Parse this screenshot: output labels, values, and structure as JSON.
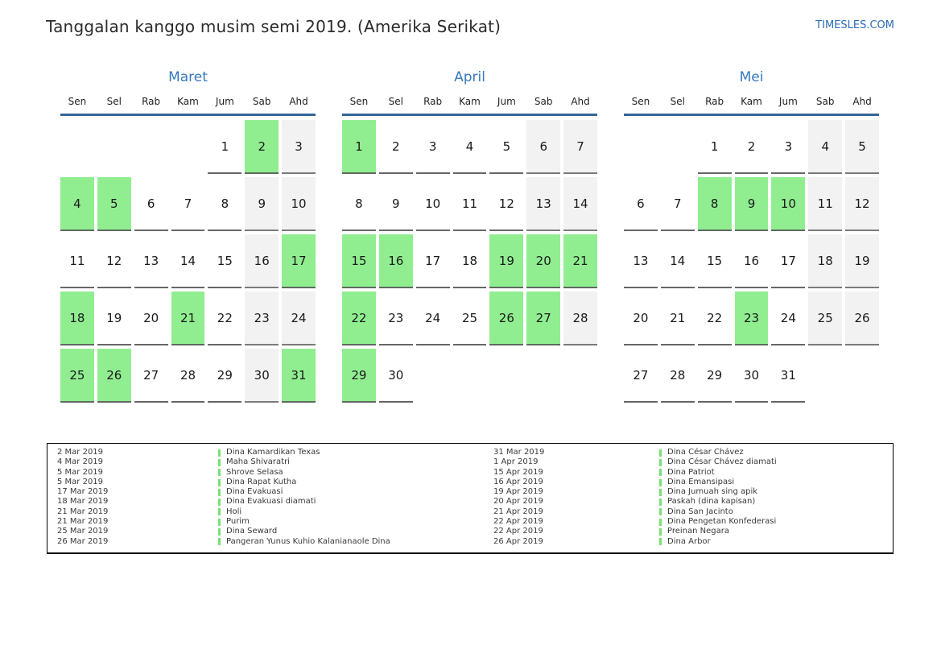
{
  "header": {
    "title": "Tanggalan kanggo musim semi 2019. (Amerika Serikat)",
    "site": "TIMESLES.COM"
  },
  "weekdays": [
    "Sen",
    "Sel",
    "Rab",
    "Kam",
    "Jum",
    "Sab",
    "Ahd"
  ],
  "months": [
    {
      "name": "Maret",
      "weeks": [
        [
          null,
          null,
          null,
          null,
          1,
          2,
          3
        ],
        [
          4,
          5,
          6,
          7,
          8,
          9,
          10
        ],
        [
          11,
          12,
          13,
          14,
          15,
          16,
          17
        ],
        [
          18,
          19,
          20,
          21,
          22,
          23,
          24
        ],
        [
          25,
          26,
          27,
          28,
          29,
          30,
          31
        ]
      ],
      "holiday_days": [
        2,
        4,
        5,
        17,
        18,
        21,
        25,
        26,
        31
      ]
    },
    {
      "name": "April",
      "weeks": [
        [
          1,
          2,
          3,
          4,
          5,
          6,
          7
        ],
        [
          8,
          9,
          10,
          11,
          12,
          13,
          14
        ],
        [
          15,
          16,
          17,
          18,
          19,
          20,
          21
        ],
        [
          22,
          23,
          24,
          25,
          26,
          27,
          28
        ],
        [
          29,
          30,
          null,
          null,
          null,
          null,
          null
        ]
      ],
      "holiday_days": [
        1,
        15,
        16,
        19,
        20,
        21,
        22,
        26,
        27,
        29
      ]
    },
    {
      "name": "Mei",
      "weeks": [
        [
          null,
          null,
          1,
          2,
          3,
          4,
          5
        ],
        [
          6,
          7,
          8,
          9,
          10,
          11,
          12
        ],
        [
          13,
          14,
          15,
          16,
          17,
          18,
          19
        ],
        [
          20,
          21,
          22,
          23,
          24,
          25,
          26
        ],
        [
          27,
          28,
          29,
          30,
          31,
          null,
          null
        ]
      ],
      "holiday_days": [
        8,
        9,
        10,
        23
      ]
    }
  ],
  "legend": {
    "columns": [
      {
        "entries": [
          {
            "date": "2 Mar 2019",
            "name": "Dina Kamardikan Texas"
          },
          {
            "date": "4 Mar 2019",
            "name": "Maha Shivaratri"
          },
          {
            "date": "5 Mar 2019",
            "name": "Shrove Selasa"
          },
          {
            "date": "5 Mar 2019",
            "name": "Dina Rapat Kutha"
          },
          {
            "date": "17 Mar 2019",
            "name": "Dina Evakuasi"
          },
          {
            "date": "18 Mar 2019",
            "name": "Dina Evakuasi diamati"
          },
          {
            "date": "21 Mar 2019",
            "name": "Holi"
          },
          {
            "date": "21 Mar 2019",
            "name": "Purim"
          },
          {
            "date": "25 Mar 2019",
            "name": "Dina Seward"
          },
          {
            "date": "26 Mar 2019",
            "name": "Pangeran Yunus Kuhio Kalanianaole Dina"
          }
        ]
      },
      {
        "entries": [
          {
            "date": "31 Mar 2019",
            "name": "Dina César Chávez"
          },
          {
            "date": "1 Apr 2019",
            "name": "Dina César Chávez diamati"
          },
          {
            "date": "15 Apr 2019",
            "name": "Dina Patriot"
          },
          {
            "date": "16 Apr 2019",
            "name": "Dina Emansipasi"
          },
          {
            "date": "19 Apr 2019",
            "name": "Dina Jumuah sing apik"
          },
          {
            "date": "20 Apr 2019",
            "name": "Paskah (dina kapisan)"
          },
          {
            "date": "21 Apr 2019",
            "name": "Dina San Jacinto"
          },
          {
            "date": "22 Apr 2019",
            "name": "Dina Pengetan Konfederasi"
          },
          {
            "date": "22 Apr 2019",
            "name": "Preinan Negara"
          },
          {
            "date": "26 Apr 2019",
            "name": "Dina Arbor"
          }
        ]
      }
    ]
  },
  "colors": {
    "holiday_green": "#90ee90",
    "weekend_gray": "#f2f2f2",
    "header_rule_blue": "#336699",
    "month_title_blue": "#3679bd",
    "link_blue": "#2a6db5",
    "legend_bar_green": "#77e077"
  }
}
